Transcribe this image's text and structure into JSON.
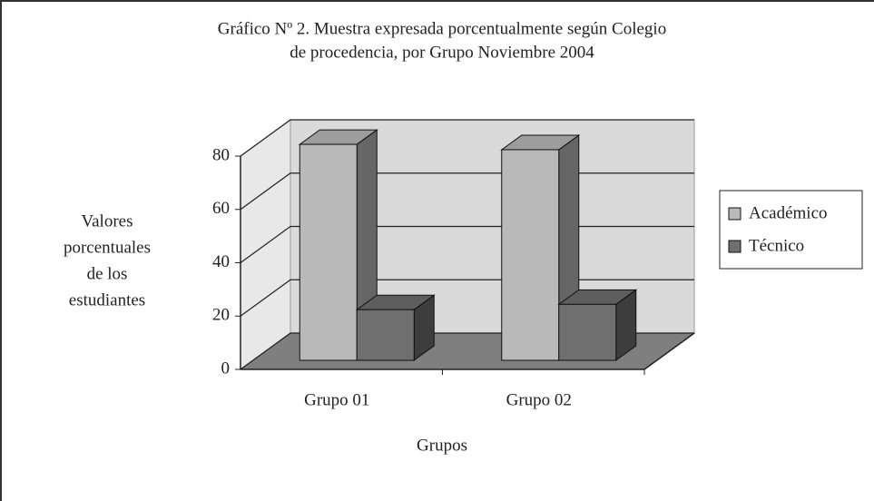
{
  "chart_data": {
    "type": "bar3d",
    "title": [
      "Gráfico Nº 2. Muestra expresada porcentualmente según Colegio",
      "de procedencia, por Grupo Noviembre 2004"
    ],
    "y_label": [
      "Valores",
      "porcentuales",
      "de los",
      "estudiantes"
    ],
    "x_label": "Grupos",
    "categories": [
      "Grupo 01",
      "Grupo 02"
    ],
    "series": [
      {
        "name": "Académico",
        "color": "#b9b9b9",
        "values": [
          81,
          79
        ]
      },
      {
        "name": "Técnico",
        "color": "#6f6f6f",
        "values": [
          19,
          21
        ]
      }
    ],
    "ylim": [
      0,
      80
    ],
    "yticks": [
      0,
      20,
      40,
      60,
      80
    ],
    "grid": true,
    "legend": "right"
  }
}
